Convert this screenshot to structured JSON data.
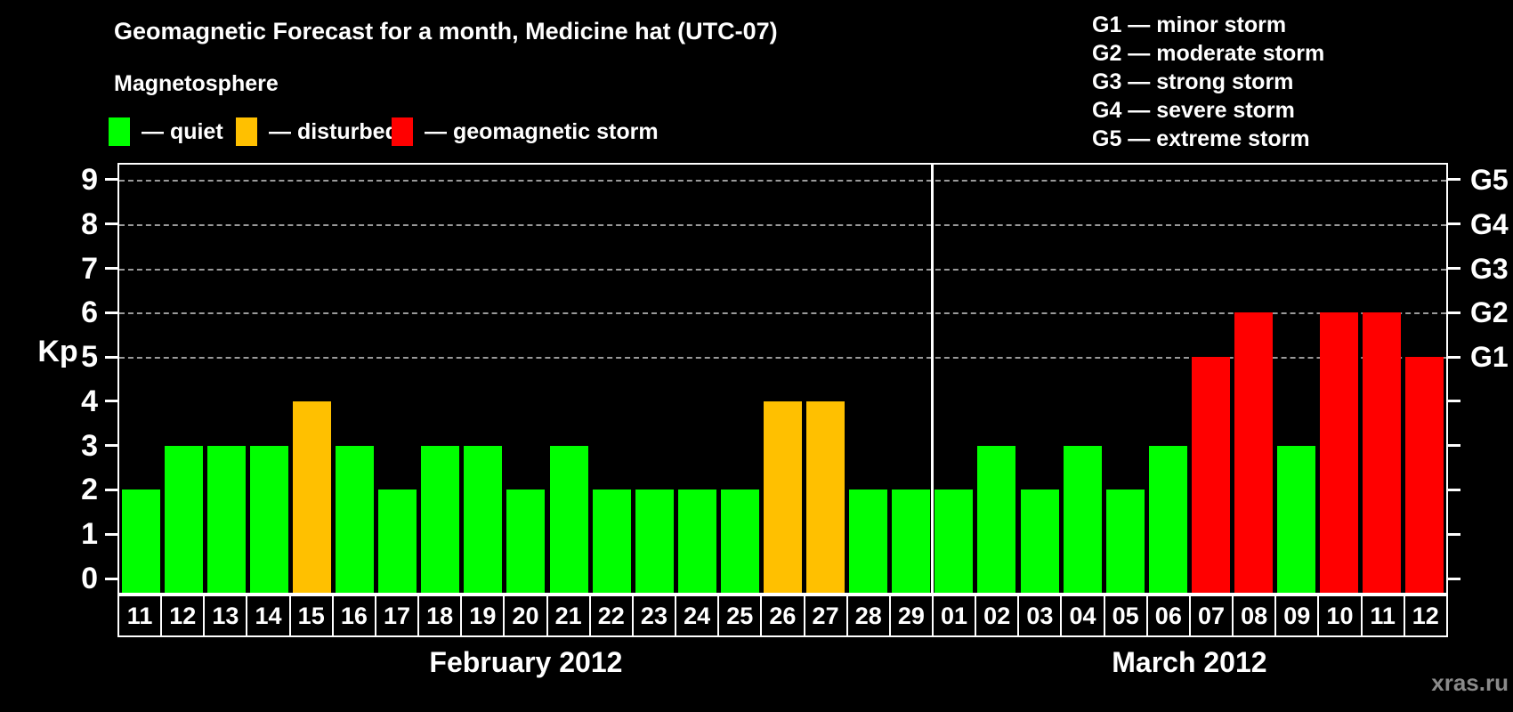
{
  "header": {
    "title": "Geomagnetic Forecast for a month, Medicine hat (UTC-07)",
    "subtitle": "Magnetosphere"
  },
  "legend": {
    "items": [
      {
        "status": "quiet",
        "label": "— quiet"
      },
      {
        "status": "disturbed",
        "label": "— disturbed"
      },
      {
        "status": "storm",
        "label": "— geomagnetic storm"
      }
    ]
  },
  "g_legend": {
    "items": [
      "G1 — minor storm",
      "G2 — moderate storm",
      "G3 — strong storm",
      "G4 — severe storm",
      "G5 — extreme storm"
    ]
  },
  "y_axis": {
    "label": "Kp",
    "ticks": [
      0,
      1,
      2,
      3,
      4,
      5,
      6,
      7,
      8,
      9
    ]
  },
  "watermark": "xras.ru",
  "colors": {
    "quiet": "#00ff00",
    "disturbed": "#ffc000",
    "storm": "#ff0000",
    "background": "#000000",
    "axis": "#ffffff",
    "grid": "#9a9a9a",
    "watermark": "#8a8a8a"
  },
  "chart_data": {
    "type": "bar",
    "title": "Geomagnetic Forecast for a month, Medicine hat (UTC-07)",
    "xlabel": "",
    "ylabel": "Kp",
    "ylim": [
      0,
      9
    ],
    "grid": "dashed horizontal lines at Kp 5,6,7,8,9 (G1–G5)",
    "legend_position": "top",
    "categories": [
      "11",
      "12",
      "13",
      "14",
      "15",
      "16",
      "17",
      "18",
      "19",
      "20",
      "21",
      "22",
      "23",
      "24",
      "25",
      "26",
      "27",
      "28",
      "29",
      "01",
      "02",
      "03",
      "04",
      "05",
      "06",
      "07",
      "08",
      "09",
      "10",
      "11",
      "12"
    ],
    "values": [
      2,
      3,
      3,
      3,
      4,
      3,
      2,
      3,
      3,
      2,
      3,
      2,
      2,
      2,
      2,
      4,
      4,
      2,
      2,
      2,
      3,
      2,
      3,
      2,
      3,
      5,
      6,
      3,
      6,
      6,
      5
    ],
    "statuses": [
      "quiet",
      "quiet",
      "quiet",
      "quiet",
      "disturbed",
      "quiet",
      "quiet",
      "quiet",
      "quiet",
      "quiet",
      "quiet",
      "quiet",
      "quiet",
      "quiet",
      "quiet",
      "disturbed",
      "disturbed",
      "quiet",
      "quiet",
      "quiet",
      "quiet",
      "quiet",
      "quiet",
      "quiet",
      "quiet",
      "storm",
      "storm",
      "quiet",
      "storm",
      "storm",
      "storm"
    ],
    "sections": [
      {
        "label": "February 2012",
        "count": 19
      },
      {
        "label": "March 2012",
        "count": 12
      }
    ],
    "right_axis": {
      "labels": [
        "G1",
        "G2",
        "G3",
        "G4",
        "G5"
      ],
      "kp_values": [
        5,
        6,
        7,
        8,
        9
      ]
    }
  }
}
